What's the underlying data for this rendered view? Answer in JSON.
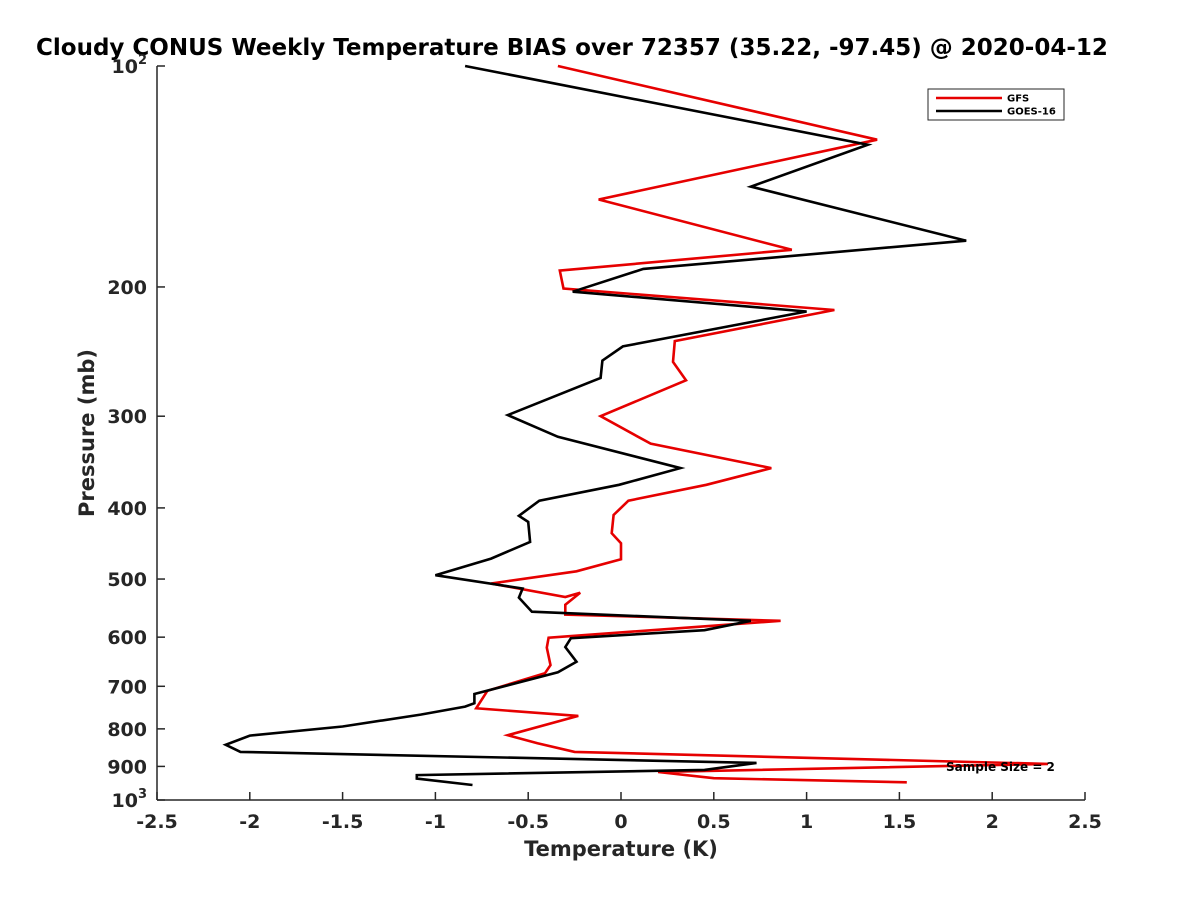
{
  "chart_data": {
    "type": "line",
    "title": "Cloudy CONUS Weekly Temperature BIAS over 72357 (35.22, -97.45) @ 2020-04-12",
    "xlabel": "Temperature (K)",
    "ylabel": "Pressure (mb)",
    "xlim": [
      -2.5,
      2.5
    ],
    "ylim": [
      100,
      1000
    ],
    "y_scale": "log",
    "y_reversed": true,
    "grid": false,
    "legend_position": "top-right",
    "x_ticks": [
      "-2.5",
      "-2",
      "-1.5",
      "-1",
      "-0.5",
      "0",
      "0.5",
      "1",
      "1.5",
      "2",
      "2.5"
    ],
    "y_ticks": [
      {
        "value": 100,
        "base": "10",
        "exp": "2",
        "label": ""
      },
      {
        "value": 200,
        "label": "200"
      },
      {
        "value": 300,
        "label": "300"
      },
      {
        "value": 400,
        "label": "400"
      },
      {
        "value": 500,
        "label": "500"
      },
      {
        "value": 600,
        "label": "600"
      },
      {
        "value": 700,
        "label": "700"
      },
      {
        "value": 800,
        "label": "800"
      },
      {
        "value": 900,
        "label": "900"
      },
      {
        "value": 1000,
        "base": "10",
        "exp": "3",
        "label": ""
      }
    ],
    "series": [
      {
        "name": "GFS",
        "color": "#e60000",
        "x": [
          -0.34,
          1.38,
          -0.12,
          0.92,
          -0.33,
          -0.31,
          1.15,
          0.29,
          0.28,
          0.35,
          -0.11,
          0.16,
          0.81,
          0.46,
          0.04,
          -0.04,
          -0.05,
          0.0,
          0.0,
          -0.24,
          -0.7,
          -0.3,
          -0.22,
          -0.3,
          -0.3,
          0.86,
          -0.39,
          -0.4,
          -0.38,
          -0.41,
          -0.72,
          -0.78,
          -0.23,
          -0.61,
          -0.45,
          -0.25,
          2.3,
          0.2,
          0.5,
          1.54
        ],
        "y": [
          100,
          126,
          152,
          178,
          190,
          201,
          215,
          237,
          253,
          268,
          300,
          327,
          353,
          372,
          391,
          409,
          433,
          447,
          470,
          488,
          507,
          529,
          522,
          542,
          559,
          570,
          601,
          620,
          655,
          672,
          710,
          750,
          768,
          816,
          837,
          860,
          893,
          916,
          934,
          946
        ]
      },
      {
        "name": "GOES-16",
        "color": "#000000",
        "x": [
          -0.84,
          1.33,
          0.7,
          1.86,
          0.12,
          -0.26,
          1.0,
          0.01,
          -0.1,
          -0.11,
          -0.61,
          -0.34,
          0.32,
          -0.01,
          -0.44,
          -0.55,
          -0.5,
          -0.49,
          -0.7,
          -1.0,
          -0.53,
          -0.55,
          -0.48,
          0.7,
          0.45,
          -0.27,
          -0.3,
          -0.24,
          -0.34,
          -0.79,
          -0.79,
          -0.84,
          -1.08,
          -1.5,
          -2.0,
          -2.13,
          -2.05,
          0.73,
          0.45,
          -1.1,
          -1.1,
          -0.8
        ],
        "y": [
          100,
          128,
          146,
          173,
          189,
          203,
          216,
          241,
          252,
          266,
          299,
          320,
          353,
          372,
          391,
          410,
          418,
          445,
          469,
          494,
          515,
          530,
          554,
          570,
          587,
          602,
          619,
          648,
          670,
          717,
          738,
          746,
          765,
          794,
          817,
          841,
          860,
          890,
          910,
          925,
          935,
          954
        ]
      }
    ],
    "annotation": "Sample Size = 2"
  }
}
